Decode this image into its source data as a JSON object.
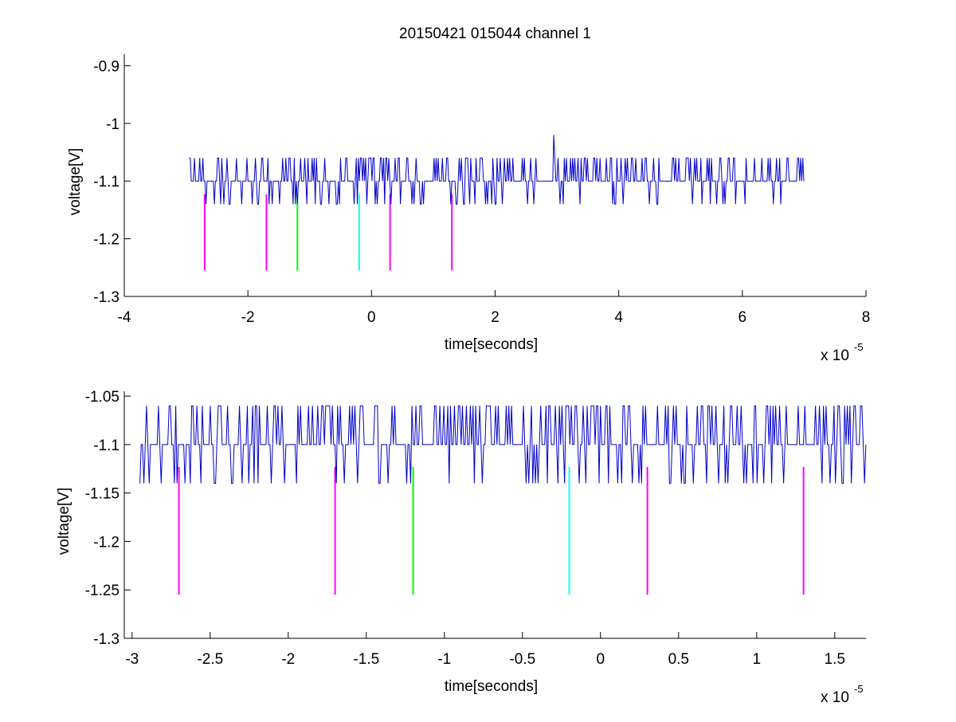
{
  "figure": {
    "background": "#ffffff"
  },
  "chart_data": [
    {
      "type": "line",
      "title": "20150421 015044 channel 1",
      "xlabel": "time[seconds]",
      "ylabel": "voltage[V]",
      "x_multiplier_label": "x 10",
      "x_multiplier_exponent": "-5",
      "xlim": [
        -4,
        8
      ],
      "ylim": [
        -1.3,
        -0.88
      ],
      "xticks": [
        -4,
        -2,
        0,
        2,
        4,
        6,
        8
      ],
      "xtick_labels": [
        "-4",
        "-2",
        "0",
        "2",
        "4",
        "6",
        "8"
      ],
      "yticks": [
        -1.3,
        -1.2,
        -1.1,
        -1.0,
        -0.9
      ],
      "ytick_labels": [
        "-1.3",
        "-1.2",
        "-1.1",
        "-1",
        "-0.9"
      ],
      "grid": false,
      "legend": "none",
      "series": [
        {
          "color": "#0000c8",
          "x_range": [
            -2.95,
            7.0
          ],
          "baseline": -1.1,
          "levels": [
            -1.06,
            -1.1,
            -1.14
          ],
          "spike": {
            "x": 2.95,
            "y": -1.02
          }
        }
      ],
      "markers": [
        {
          "x": -2.7,
          "y1": -1.123,
          "y2": -1.255,
          "color": "#ff00ff"
        },
        {
          "x": -1.7,
          "y1": -1.123,
          "y2": -1.255,
          "color": "#ff00ff"
        },
        {
          "x": -1.2,
          "y1": -1.123,
          "y2": -1.255,
          "color": "#00ff00"
        },
        {
          "x": -0.2,
          "y1": -1.123,
          "y2": -1.255,
          "color": "#00ffff"
        },
        {
          "x": 0.3,
          "y1": -1.123,
          "y2": -1.255,
          "color": "#ff00ff"
        },
        {
          "x": 1.3,
          "y1": -1.123,
          "y2": -1.255,
          "color": "#ff00ff"
        }
      ]
    },
    {
      "type": "line",
      "title": "",
      "xlabel": "time[seconds]",
      "ylabel": "voltage[V]",
      "x_multiplier_label": "x 10",
      "x_multiplier_exponent": "-5",
      "xlim": [
        -3.05,
        1.7
      ],
      "ylim": [
        -1.3,
        -1.045
      ],
      "xticks": [
        -3,
        -2.5,
        -2,
        -1.5,
        -1,
        -0.5,
        0,
        0.5,
        1,
        1.5
      ],
      "xtick_labels": [
        "-3",
        "-2.5",
        "-2",
        "-1.5",
        "-1",
        "-0.5",
        "0",
        "0.5",
        "1",
        "1.5"
      ],
      "yticks": [
        -1.3,
        -1.25,
        -1.2,
        -1.15,
        -1.1,
        -1.05
      ],
      "ytick_labels": [
        "-1.3",
        "-1.25",
        "-1.2",
        "-1.15",
        "-1.1",
        "-1.05"
      ],
      "grid": false,
      "legend": "none",
      "series": [
        {
          "color": "#0000c8",
          "x_range": [
            -2.95,
            1.7
          ],
          "baseline": -1.1,
          "levels": [
            -1.06,
            -1.1,
            -1.14
          ]
        }
      ],
      "markers": [
        {
          "x": -2.7,
          "y1": -1.123,
          "y2": -1.255,
          "color": "#ff00ff"
        },
        {
          "x": -1.7,
          "y1": -1.123,
          "y2": -1.255,
          "color": "#ff00ff"
        },
        {
          "x": -1.2,
          "y1": -1.123,
          "y2": -1.255,
          "color": "#00ff00"
        },
        {
          "x": -0.2,
          "y1": -1.123,
          "y2": -1.255,
          "color": "#00ffff"
        },
        {
          "x": 0.3,
          "y1": -1.123,
          "y2": -1.255,
          "color": "#ff00ff"
        },
        {
          "x": 1.3,
          "y1": -1.123,
          "y2": -1.255,
          "color": "#ff00ff"
        }
      ]
    }
  ]
}
